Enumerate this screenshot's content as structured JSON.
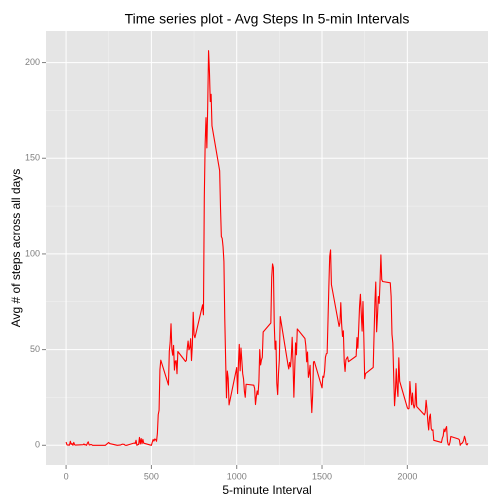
{
  "chart_data": {
    "type": "line",
    "title": "Time series plot - Avg Steps In 5-min Intervals",
    "xlabel": "5-minute Interval",
    "ylabel": "Avg # of steps across all days",
    "color": "#ff0000",
    "grid": true,
    "xlim": [
      -117.75,
      2472.75
    ],
    "ylim": [
      -10.3,
      216.5
    ],
    "xticks": [
      0,
      500,
      1000,
      1500,
      2000
    ],
    "yticks": [
      0,
      50,
      100,
      150,
      200
    ],
    "x": [
      0,
      5,
      10,
      15,
      20,
      25,
      30,
      35,
      40,
      45,
      50,
      55,
      100,
      105,
      110,
      115,
      120,
      125,
      130,
      135,
      140,
      145,
      150,
      155,
      200,
      230,
      250,
      255,
      300,
      320,
      330,
      335,
      340,
      345,
      350,
      355,
      400,
      405,
      410,
      415,
      420,
      425,
      430,
      435,
      440,
      445,
      450,
      455,
      500,
      505,
      510,
      515,
      520,
      525,
      530,
      535,
      540,
      545,
      550,
      555,
      600,
      605,
      610,
      615,
      620,
      625,
      630,
      635,
      640,
      645,
      650,
      655,
      700,
      705,
      710,
      715,
      720,
      725,
      730,
      735,
      740,
      745,
      750,
      755,
      800,
      805,
      810,
      815,
      820,
      825,
      830,
      835,
      840,
      845,
      850,
      855,
      900,
      905,
      910,
      915,
      920,
      925,
      930,
      935,
      940,
      945,
      950,
      955,
      1000,
      1005,
      1010,
      1015,
      1020,
      1025,
      1030,
      1035,
      1040,
      1045,
      1050,
      1055,
      1100,
      1105,
      1110,
      1115,
      1120,
      1125,
      1130,
      1135,
      1140,
      1145,
      1150,
      1155,
      1200,
      1205,
      1210,
      1215,
      1220,
      1225,
      1230,
      1235,
      1240,
      1245,
      1250,
      1255,
      1300,
      1305,
      1310,
      1315,
      1320,
      1325,
      1330,
      1335,
      1340,
      1345,
      1350,
      1355,
      1400,
      1405,
      1410,
      1415,
      1420,
      1425,
      1430,
      1435,
      1440,
      1445,
      1450,
      1455,
      1500,
      1505,
      1510,
      1515,
      1520,
      1525,
      1530,
      1535,
      1540,
      1545,
      1550,
      1555,
      1600,
      1605,
      1610,
      1615,
      1620,
      1625,
      1630,
      1635,
      1640,
      1645,
      1650,
      1655,
      1700,
      1705,
      1710,
      1715,
      1720,
      1725,
      1730,
      1735,
      1740,
      1745,
      1750,
      1755,
      1800,
      1805,
      1810,
      1815,
      1820,
      1825,
      1830,
      1835,
      1840,
      1845,
      1850,
      1855,
      1900,
      1905,
      1910,
      1915,
      1920,
      1925,
      1930,
      1935,
      1940,
      1945,
      1950,
      1955,
      2000,
      2005,
      2010,
      2015,
      2020,
      2025,
      2030,
      2035,
      2040,
      2045,
      2050,
      2055,
      2100,
      2105,
      2110,
      2115,
      2120,
      2125,
      2130,
      2135,
      2140,
      2145,
      2150,
      2155,
      2200,
      2205,
      2210,
      2215,
      2220,
      2225,
      2230,
      2235,
      2240,
      2245,
      2250,
      2255,
      2300,
      2305,
      2310,
      2315,
      2320,
      2325,
      2330,
      2335,
      2340,
      2345,
      2350,
      2355
    ],
    "values": [
      1.7,
      0.3,
      0.1,
      0.2,
      0.1,
      2.1,
      0.5,
      0.9,
      0,
      1.5,
      0.3,
      0.1,
      0.3,
      0.7,
      0.2,
      0.3,
      0,
      1.1,
      1.8,
      0.2,
      0.2,
      0.4,
      0.3,
      0,
      0,
      0,
      1.5,
      0.9,
      0,
      0.2,
      0.6,
      0.5,
      0.5,
      0.1,
      0,
      0,
      1.2,
      0.9,
      2.6,
      0,
      0.3,
      0.4,
      4.1,
      0.7,
      3.5,
      0.8,
      3.1,
      1.1,
      0,
      1.6,
      3,
      2.2,
      3.3,
      3,
      2.1,
      6.1,
      16,
      18.3,
      39.5,
      44.5,
      31.5,
      49.3,
      53.8,
      63.5,
      50,
      47.1,
      52.2,
      39.3,
      44,
      44.2,
      37.4,
      49,
      43.8,
      44.4,
      50.5,
      54.5,
      49.9,
      50.9,
      55.7,
      44.3,
      52.3,
      69.5,
      57.8,
      56.2,
      73.4,
      68.2,
      129.4,
      157.5,
      171.2,
      155.4,
      177.3,
      206.2,
      195.9,
      179.6,
      183.4,
      167,
      143.5,
      124,
      109.1,
      108.1,
      103.7,
      96,
      66.2,
      45.2,
      24.8,
      38.8,
      35,
      21.1,
      40.6,
      27,
      42.4,
      52.7,
      38.9,
      50.8,
      44.3,
      37.4,
      34.7,
      28.3,
      25.1,
      31.9,
      31.4,
      29.7,
      21.3,
      25.5,
      28.4,
      26.5,
      33.4,
      50,
      42,
      44.6,
      46,
      59.2,
      63.9,
      87.7,
      94.8,
      92.8,
      63.4,
      50.2,
      54.5,
      32.4,
      26.5,
      37.7,
      45.1,
      67.3,
      42.3,
      39.9,
      43.3,
      41,
      46.2,
      56.4,
      42.8,
      25.1,
      40,
      53.5,
      47.3,
      60.8,
      55.8,
      52,
      43.6,
      48.7,
      35.5,
      37.5,
      41.8,
      27.5,
      17.1,
      26.1,
      43.6,
      43.8,
      30,
      36.1,
      35.5,
      38.8,
      46,
      47.8,
      48.1,
      65.3,
      82.9,
      98.7,
      102.1,
      84,
      62.1,
      64.1,
      74.5,
      63.2,
      56.9,
      59.8,
      43.9,
      38.6,
      44.7,
      45.5,
      46.2,
      43.7,
      46.6,
      56.3,
      50.7,
      61.2,
      72.7,
      78.9,
      68.9,
      59.7,
      75.1,
      56.5,
      34.8,
      37.5,
      40.7,
      58,
      74.7,
      85.3,
      59.3,
      67.8,
      77.7,
      74.2,
      85.3,
      99.5,
      86.6,
      85.6,
      84.9,
      77.8,
      58,
      53.4,
      36.3,
      20.7,
      27.4,
      40,
      30.2,
      25.5,
      45.7,
      33.5,
      19.6,
      19,
      19.3,
      33.3,
      26.8,
      21.2,
      27.3,
      21.3,
      19.5,
      21.3,
      32.3,
      20.2,
      15.9,
      17.2,
      23.5,
      19.2,
      12.5,
      8,
      14.7,
      16.3,
      8.7,
      7.8,
      8.1,
      2.6,
      1.5,
      3.7,
      4.8,
      8.5,
      7.1,
      8.7,
      9.8,
      2.2,
      0.3,
      0.1,
      1.6,
      4.6,
      3.3,
      2.8,
      0,
      0.8,
      1,
      1.6,
      2.6,
      4.7,
      3.3,
      0.6,
      0.2,
      1.1
    ]
  }
}
